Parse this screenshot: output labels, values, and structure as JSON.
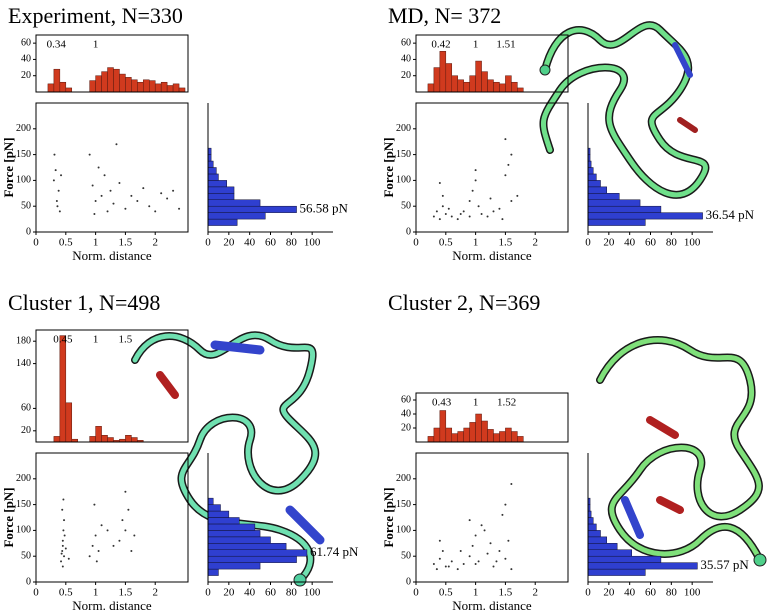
{
  "chart_data": [
    {
      "type": "histogram",
      "title": "Experiment, N=330",
      "bins": [
        0,
        0.1,
        0.2,
        0.3,
        0.4,
        0.5,
        0.6,
        0.7,
        0.8,
        0.9,
        1,
        1.1,
        1.2,
        1.3,
        1.4,
        1.5,
        1.6,
        1.7,
        1.8,
        1.9,
        2,
        2.1,
        2.2,
        2.3,
        2.4,
        2.5
      ],
      "values": [
        0,
        0,
        10,
        28,
        12,
        5,
        0,
        0,
        0,
        14,
        20,
        25,
        30,
        28,
        22,
        18,
        15,
        12,
        15,
        14,
        10,
        12,
        8,
        10,
        5
      ],
      "xlim": [
        0,
        2.55
      ],
      "ylim": [
        0,
        70
      ],
      "yticks": [
        20,
        40,
        60
      ],
      "peaks": [
        0.34,
        1
      ],
      "color": "#d03a1e"
    },
    {
      "type": "scatter",
      "xlabel": "Norm. distance",
      "ylabel": "Force [pN]",
      "x": [
        0.3,
        0.35,
        0.4,
        0.33,
        0.38,
        0.42,
        0.36,
        0.31,
        0.9,
        0.95,
        1.0,
        1.1,
        1.15,
        1.2,
        1.25,
        1.3,
        1.4,
        1.5,
        1.6,
        1.7,
        1.8,
        1.9,
        2.0,
        2.1,
        2.2,
        2.3,
        2.4,
        1.05,
        1.35,
        0.98
      ],
      "y": [
        100,
        60,
        40,
        120,
        80,
        110,
        50,
        150,
        150,
        90,
        60,
        70,
        110,
        40,
        80,
        55,
        95,
        45,
        70,
        60,
        85,
        50,
        40,
        75,
        65,
        80,
        45,
        125,
        170,
        35
      ],
      "xlim": [
        0,
        2.55
      ],
      "xticks": [
        0,
        0.5,
        1,
        1.5,
        2
      ],
      "ylim": [
        0,
        250
      ],
      "yticks": [
        0,
        50,
        100,
        150,
        200
      ],
      "color": "#333333"
    },
    {
      "type": "histogram",
      "orientation": "horizontal",
      "bins": [
        12.5,
        25,
        37.5,
        50,
        62.5,
        75,
        87.5,
        100,
        112.5,
        125,
        137.5,
        150,
        162.5
      ],
      "values": [
        28,
        55,
        85,
        50,
        25,
        25,
        18,
        10,
        8,
        5,
        3,
        3
      ],
      "xlim": [
        0,
        120
      ],
      "xticks": [
        0,
        20,
        40,
        60,
        80,
        100
      ],
      "ylim": [
        0,
        250
      ],
      "annotation": "56.58 pN",
      "color": "#2f3fd0"
    },
    {
      "type": "histogram",
      "title": "MD, N= 372",
      "bins": [
        0,
        0.1,
        0.2,
        0.3,
        0.4,
        0.5,
        0.6,
        0.7,
        0.8,
        0.9,
        1,
        1.1,
        1.2,
        1.3,
        1.4,
        1.5,
        1.6,
        1.7,
        1.8,
        1.9,
        2,
        2.1,
        2.2,
        2.3,
        2.4,
        2.5
      ],
      "values": [
        0,
        0,
        10,
        30,
        50,
        35,
        20,
        15,
        12,
        20,
        38,
        25,
        15,
        12,
        10,
        20,
        12,
        5,
        0,
        0,
        0,
        0,
        0,
        0,
        0
      ],
      "xlim": [
        0,
        2.55
      ],
      "ylim": [
        0,
        70
      ],
      "yticks": [
        20,
        40,
        60
      ],
      "peaks": [
        0.42,
        1,
        1.51
      ],
      "color": "#d03a1e"
    },
    {
      "type": "scatter",
      "xlabel": "Norm. distance",
      "ylabel": "Force [pN]",
      "x": [
        0.3,
        0.35,
        0.4,
        0.45,
        0.5,
        0.55,
        0.6,
        0.7,
        0.8,
        0.9,
        0.95,
        1.0,
        1.05,
        1.1,
        1.2,
        1.3,
        1.4,
        1.5,
        1.55,
        1.6,
        0.4,
        0.45,
        0.9,
        1.0,
        1.5,
        1.6,
        1.7,
        0.75,
        1.25,
        1.45
      ],
      "y": [
        30,
        40,
        25,
        70,
        35,
        45,
        30,
        25,
        40,
        60,
        80,
        100,
        50,
        35,
        30,
        40,
        45,
        110,
        130,
        60,
        95,
        50,
        30,
        120,
        180,
        150,
        70,
        35,
        65,
        25
      ],
      "xlim": [
        0,
        2.55
      ],
      "xticks": [
        0,
        0.5,
        1,
        1.5,
        2
      ],
      "ylim": [
        0,
        250
      ],
      "yticks": [
        0,
        50,
        100,
        150,
        200
      ],
      "color": "#333333"
    },
    {
      "type": "histogram",
      "orientation": "horizontal",
      "bins": [
        12.5,
        25,
        37.5,
        50,
        62.5,
        75,
        87.5,
        100,
        112.5,
        125,
        137.5,
        150,
        162.5
      ],
      "values": [
        55,
        110,
        70,
        50,
        30,
        18,
        12,
        8,
        5,
        3,
        2,
        2
      ],
      "xlim": [
        0,
        120
      ],
      "xticks": [
        0,
        20,
        40,
        60,
        80,
        100
      ],
      "ylim": [
        0,
        250
      ],
      "annotation": "36.54 pN",
      "color": "#2f3fd0"
    },
    {
      "type": "histogram",
      "title": "Cluster 1, N=498",
      "bins": [
        0,
        0.1,
        0.2,
        0.3,
        0.4,
        0.5,
        0.6,
        0.7,
        0.8,
        0.9,
        1,
        1.1,
        1.2,
        1.3,
        1.4,
        1.5,
        1.6,
        1.7,
        1.8,
        1.9,
        2,
        2.1,
        2.2,
        2.3,
        2.4,
        2.5
      ],
      "values": [
        0,
        0,
        0,
        10,
        190,
        70,
        5,
        0,
        0,
        10,
        28,
        12,
        8,
        3,
        5,
        12,
        8,
        3,
        0,
        0,
        0,
        0,
        0,
        0,
        0
      ],
      "xlim": [
        0,
        2.55
      ],
      "ylim": [
        0,
        200
      ],
      "yticks": [
        20,
        60,
        140,
        180
      ],
      "peaks": [
        0.45,
        1,
        1.5
      ],
      "color": "#d03a1e"
    },
    {
      "type": "scatter",
      "xlabel": "Norm. distance",
      "ylabel": "Force [pN]",
      "x": [
        0.42,
        0.44,
        0.45,
        0.46,
        0.47,
        0.43,
        0.45,
        0.48,
        0.44,
        0.46,
        0.45,
        0.47,
        0.9,
        0.95,
        1.0,
        1.05,
        1.1,
        0.98,
        1.02,
        1.4,
        1.5,
        1.55,
        1.6,
        1.45,
        1.5,
        1.3,
        1.65,
        0.5,
        0.55,
        1.2
      ],
      "y": [
        40,
        60,
        80,
        100,
        120,
        55,
        70,
        90,
        140,
        160,
        30,
        50,
        50,
        70,
        90,
        60,
        110,
        150,
        40,
        80,
        100,
        140,
        60,
        120,
        175,
        70,
        90,
        65,
        45,
        100
      ],
      "xlim": [
        0,
        2.55
      ],
      "xticks": [
        0,
        0.5,
        1,
        1.5,
        2
      ],
      "ylim": [
        0,
        250
      ],
      "yticks": [
        0,
        50,
        100,
        150,
        200
      ],
      "color": "#333333"
    },
    {
      "type": "histogram",
      "orientation": "horizontal",
      "bins": [
        12.5,
        25,
        37.5,
        50,
        62.5,
        75,
        87.5,
        100,
        112.5,
        125,
        137.5,
        150,
        162.5
      ],
      "values": [
        10,
        50,
        85,
        95,
        75,
        60,
        50,
        45,
        30,
        20,
        12,
        5
      ],
      "xlim": [
        0,
        120
      ],
      "xticks": [
        0,
        20,
        40,
        60,
        80,
        100
      ],
      "ylim": [
        0,
        250
      ],
      "annotation": "61.74 pN",
      "color": "#2f3fd0"
    },
    {
      "type": "histogram",
      "title": "Cluster 2, N=369",
      "bins": [
        0,
        0.1,
        0.2,
        0.3,
        0.4,
        0.5,
        0.6,
        0.7,
        0.8,
        0.9,
        1,
        1.1,
        1.2,
        1.3,
        1.4,
        1.5,
        1.6,
        1.7,
        1.8,
        1.9,
        2,
        2.1,
        2.2,
        2.3,
        2.4,
        2.5
      ],
      "values": [
        0,
        0,
        8,
        20,
        45,
        20,
        12,
        15,
        20,
        28,
        40,
        30,
        18,
        12,
        15,
        20,
        15,
        8,
        0,
        0,
        0,
        0,
        0,
        0,
        0
      ],
      "xlim": [
        0,
        2.55
      ],
      "ylim": [
        0,
        70
      ],
      "yticks": [
        20,
        40,
        60
      ],
      "peaks": [
        0.43,
        1,
        1.52
      ],
      "color": "#d03a1e"
    },
    {
      "type": "scatter",
      "xlabel": "Norm. distance",
      "ylabel": "Force [pN]",
      "x": [
        0.3,
        0.35,
        0.4,
        0.45,
        0.5,
        0.6,
        0.7,
        0.8,
        0.9,
        0.95,
        1.0,
        1.05,
        1.1,
        1.2,
        1.3,
        1.4,
        1.5,
        1.55,
        1.6,
        0.4,
        0.9,
        1.0,
        1.5,
        1.6,
        1.25,
        0.75,
        1.15,
        1.45,
        0.55,
        1.35
      ],
      "y": [
        35,
        25,
        45,
        60,
        30,
        40,
        25,
        35,
        50,
        70,
        90,
        40,
        110,
        55,
        30,
        60,
        150,
        80,
        190,
        80,
        120,
        35,
        45,
        25,
        75,
        60,
        100,
        130,
        30,
        40
      ],
      "xlim": [
        0,
        2.55
      ],
      "xticks": [
        0,
        0.5,
        1,
        1.5,
        2
      ],
      "ylim": [
        0,
        250
      ],
      "yticks": [
        0,
        50,
        100,
        150,
        200
      ],
      "color": "#333333"
    },
    {
      "type": "histogram",
      "orientation": "horizontal",
      "bins": [
        12.5,
        25,
        37.5,
        50,
        62.5,
        75,
        87.5,
        100,
        112.5,
        125,
        137.5,
        150,
        162.5
      ],
      "values": [
        55,
        105,
        70,
        42,
        28,
        18,
        12,
        8,
        5,
        3,
        2,
        2
      ],
      "xlim": [
        0,
        120
      ],
      "xticks": [
        0,
        20,
        40,
        60,
        80,
        100
      ],
      "ylim": [
        0,
        250
      ],
      "annotation": "35.57 pN",
      "color": "#2f3fd0"
    }
  ]
}
